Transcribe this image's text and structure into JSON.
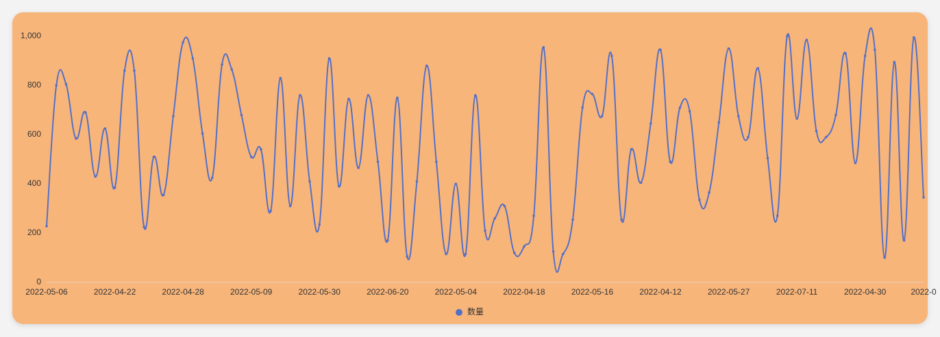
{
  "chart_data": {
    "type": "line",
    "categories": [
      "2022-05-06",
      null,
      null,
      null,
      null,
      null,
      null,
      "2022-04-22",
      null,
      null,
      null,
      null,
      null,
      null,
      "2022-04-28",
      null,
      null,
      null,
      null,
      null,
      null,
      "2022-05-09",
      null,
      null,
      null,
      null,
      null,
      null,
      "2022-05-30",
      null,
      null,
      null,
      null,
      null,
      null,
      "2022-06-20",
      null,
      null,
      null,
      null,
      null,
      null,
      "2022-05-04",
      null,
      null,
      null,
      null,
      null,
      null,
      "2022-04-18",
      null,
      null,
      null,
      null,
      null,
      null,
      "2022-05-16",
      null,
      null,
      null,
      null,
      null,
      null,
      "2022-04-12",
      null,
      null,
      null,
      null,
      null,
      null,
      "2022-05-27",
      null,
      null,
      null,
      null,
      null,
      null,
      "2022-07-11",
      null,
      null,
      null,
      null,
      null,
      null,
      "2022-04-30",
      null,
      null,
      null,
      null,
      null,
      "2022-0"
    ],
    "series": [
      {
        "name": "数量",
        "color": "#5470c6",
        "values": [
          228,
          800,
          805,
          585,
          690,
          430,
          625,
          385,
          860,
          860,
          225,
          510,
          355,
          675,
          975,
          910,
          605,
          425,
          885,
          865,
          680,
          510,
          540,
          290,
          830,
          310,
          760,
          410,
          235,
          910,
          390,
          745,
          465,
          760,
          490,
          170,
          750,
          105,
          410,
          880,
          490,
          115,
          400,
          115,
          760,
          210,
          260,
          310,
          120,
          145,
          270,
          955,
          125,
          115,
          255,
          710,
          765,
          675,
          920,
          255,
          540,
          405,
          645,
          945,
          490,
          710,
          695,
          335,
          365,
          650,
          950,
          675,
          590,
          870,
          505,
          270,
          1000,
          665,
          985,
          615,
          590,
          680,
          930,
          485,
          920,
          945,
          100,
          895,
          170,
          995,
          345
        ]
      }
    ],
    "ylim": [
      0,
      1000
    ],
    "yticks": [
      0,
      200,
      400,
      600,
      800,
      {
        "value": 1000,
        "label": "1,000"
      }
    ],
    "grid": false,
    "legend": "bottom"
  }
}
